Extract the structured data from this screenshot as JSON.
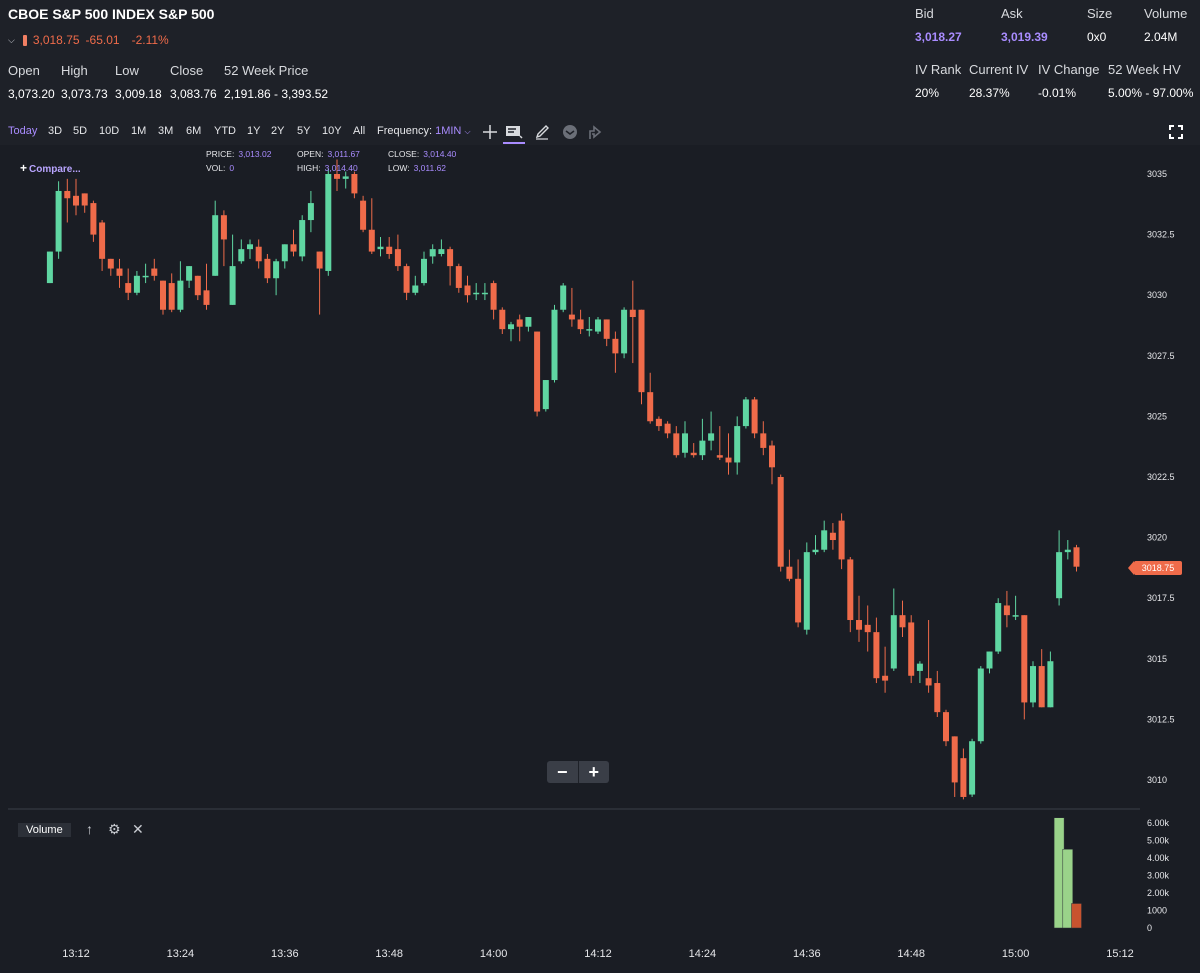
{
  "header": {
    "title": "CBOE S&P 500 INDEX S&P 500",
    "last": "3,018.75",
    "change": "-65.01",
    "change_pct": "-2.11%"
  },
  "ohlc": {
    "open_label": "Open",
    "open": "3,073.20",
    "high_label": "High",
    "high": "3,073.73",
    "low_label": "Low",
    "low": "3,009.18",
    "close_label": "Close",
    "close": "3,083.76",
    "week52_label": "52 Week Price",
    "week52": "2,191.86 - 3,393.52"
  },
  "quote": {
    "bid_label": "Bid",
    "bid": "3,018.27",
    "ask_label": "Ask",
    "ask": "3,019.39",
    "size_label": "Size",
    "size": "0x0",
    "volume_label": "Volume",
    "volume": "2.04M",
    "ivrank_label": "IV Rank",
    "ivrank": "20%",
    "curiv_label": "Current IV",
    "curiv": "28.37%",
    "ivchange_label": "IV Change",
    "ivchange": "-0.01%",
    "hv52_label": "52 Week HV",
    "hv52": "5.00% - 97.00%"
  },
  "toolbar": {
    "ranges": [
      "Today",
      "3D",
      "5D",
      "10D",
      "1M",
      "3M",
      "6M",
      "YTD",
      "1Y",
      "2Y",
      "5Y",
      "10Y",
      "All"
    ],
    "active_range": "Today",
    "frequency_label": "Frequency:",
    "frequency_value": "1MIN"
  },
  "legend": {
    "price_label": "PRICE:",
    "price": "3,013.02",
    "vol_label": "VOL:",
    "vol": "0",
    "open_label": "OPEN:",
    "open": "3,011.67",
    "high_label": "HIGH:",
    "high": "3,014.40",
    "close_label": "CLOSE:",
    "close": "3,014.40",
    "low_label": "LOW:",
    "low": "3,011.62"
  },
  "compare_label": "Compare...",
  "volume_panel": {
    "label": "Volume",
    "y_ticks": [
      "6.00k",
      "5.00k",
      "4.00k",
      "3.00k",
      "2.00k",
      "1000",
      "0"
    ]
  },
  "zoom": {
    "minus": "−",
    "plus": "+"
  },
  "price_badge": "3018.75",
  "colors": {
    "up": "#5fd6a2",
    "down": "#ef6b4a",
    "accent": "#a98cff",
    "background": "#1a1d24"
  },
  "chart_data": {
    "type": "candlestick",
    "y_ticks": [
      3035,
      3032.5,
      3030,
      3027.5,
      3025,
      3022.5,
      3020,
      3017.5,
      3015,
      3012.5,
      3010
    ],
    "y_tick_labels": [
      "3035",
      "3032.5",
      "3030",
      "3027.5",
      "3025",
      "3022.5",
      "3020",
      "3017.5",
      "3015",
      "3012.5",
      "3010"
    ],
    "ylim": [
      3009.2,
      3035.6
    ],
    "x_tick_labels": [
      "13:12",
      "13:24",
      "13:36",
      "13:48",
      "14:00",
      "14:12",
      "14:24",
      "14:36",
      "14:48",
      "15:00",
      "15:12"
    ],
    "candles": [
      {
        "time": "13:09",
        "open": 3030.5,
        "high": 3031.8,
        "close": 3031.8,
        "low": 3030.5
      },
      {
        "time": "13:10",
        "open": 3031.8,
        "high": 3034.7,
        "close": 3034.3,
        "low": 3031.5
      },
      {
        "time": "13:11",
        "open": 3034.3,
        "high": 3034.8,
        "close": 3034.0,
        "low": 3033.0
      },
      {
        "time": "13:12",
        "open": 3034.1,
        "high": 3034.8,
        "close": 3033.7,
        "low": 3033.3
      },
      {
        "time": "13:13",
        "open": 3034.2,
        "high": 3034.2,
        "close": 3033.7,
        "low": 3033.4
      },
      {
        "time": "13:14",
        "open": 3033.8,
        "high": 3033.9,
        "close": 3032.5,
        "low": 3032.2
      },
      {
        "time": "13:15",
        "open": 3033.0,
        "high": 3033.1,
        "close": 3031.5,
        "low": 3031.0
      },
      {
        "time": "13:16",
        "open": 3031.5,
        "high": 3031.5,
        "close": 3031.1,
        "low": 3030.8
      },
      {
        "time": "13:17",
        "open": 3031.1,
        "high": 3031.5,
        "close": 3030.8,
        "low": 3030.3
      },
      {
        "time": "13:18",
        "open": 3030.5,
        "high": 3031.1,
        "close": 3030.1,
        "low": 3029.8
      },
      {
        "time": "13:19",
        "open": 3030.1,
        "high": 3031.0,
        "close": 3030.8,
        "low": 3030.0
      },
      {
        "time": "13:20",
        "open": 3030.8,
        "high": 3031.3,
        "close": 3030.8,
        "low": 3030.5
      },
      {
        "time": "13:21",
        "open": 3031.1,
        "high": 3031.5,
        "close": 3030.8,
        "low": 3030.6
      },
      {
        "time": "13:22",
        "open": 3030.6,
        "high": 3030.6,
        "close": 3029.4,
        "low": 3029.2
      },
      {
        "time": "13:23",
        "open": 3030.5,
        "high": 3030.9,
        "close": 3029.4,
        "low": 3029.3
      },
      {
        "time": "13:24",
        "open": 3029.4,
        "high": 3031.4,
        "close": 3030.6,
        "low": 3029.3
      },
      {
        "time": "13:25",
        "open": 3030.6,
        "high": 3031.2,
        "close": 3031.2,
        "low": 3030.3
      },
      {
        "time": "13:26",
        "open": 3030.8,
        "high": 3030.8,
        "close": 3030.0,
        "low": 3029.8
      },
      {
        "time": "13:27",
        "open": 3030.2,
        "high": 3031.3,
        "close": 3029.6,
        "low": 3029.4
      },
      {
        "time": "13:28",
        "open": 3030.8,
        "high": 3033.9,
        "close": 3033.3,
        "low": 3030.8
      },
      {
        "time": "13:29",
        "open": 3033.3,
        "high": 3033.5,
        "close": 3032.3,
        "low": 3031.2
      },
      {
        "time": "13:30",
        "open": 3029.6,
        "high": 3032.5,
        "close": 3031.2,
        "low": 3029.6
      },
      {
        "time": "13:31",
        "open": 3031.4,
        "high": 3032.3,
        "close": 3031.9,
        "low": 3031.3
      },
      {
        "time": "13:32",
        "open": 3031.9,
        "high": 3032.3,
        "close": 3032.1,
        "low": 3031.5
      },
      {
        "time": "13:33",
        "open": 3032.0,
        "high": 3032.3,
        "close": 3031.4,
        "low": 3031.1
      },
      {
        "time": "13:34",
        "open": 3031.5,
        "high": 3031.7,
        "close": 3030.7,
        "low": 3030.5
      },
      {
        "time": "13:35",
        "open": 3030.7,
        "high": 3031.5,
        "close": 3031.4,
        "low": 3030.0
      },
      {
        "time": "13:36",
        "open": 3031.4,
        "high": 3032.1,
        "close": 3032.1,
        "low": 3031.1
      },
      {
        "time": "13:37",
        "open": 3032.1,
        "high": 3032.7,
        "close": 3031.8,
        "low": 3031.6
      },
      {
        "time": "13:38",
        "open": 3031.6,
        "high": 3033.3,
        "close": 3033.1,
        "low": 3031.4
      },
      {
        "time": "13:39",
        "open": 3033.1,
        "high": 3034.3,
        "close": 3033.8,
        "low": 3032.6
      },
      {
        "time": "13:40",
        "open": 3031.8,
        "high": 3031.8,
        "close": 3031.1,
        "low": 3029.2
      },
      {
        "time": "13:41",
        "open": 3031.0,
        "high": 3035.2,
        "close": 3035.0,
        "low": 3030.8
      },
      {
        "time": "13:42",
        "open": 3035.0,
        "high": 3035.6,
        "close": 3034.8,
        "low": 3034.3
      },
      {
        "time": "13:43",
        "open": 3034.8,
        "high": 3035.1,
        "close": 3034.9,
        "low": 3034.4
      },
      {
        "time": "13:44",
        "open": 3035.0,
        "high": 3035.1,
        "close": 3034.2,
        "low": 3034.0
      },
      {
        "time": "13:45",
        "open": 3033.9,
        "high": 3034.1,
        "close": 3032.7,
        "low": 3032.6
      },
      {
        "time": "13:46",
        "open": 3032.7,
        "high": 3034.0,
        "close": 3031.8,
        "low": 3031.7
      },
      {
        "time": "13:47",
        "open": 3031.9,
        "high": 3032.4,
        "close": 3032.0,
        "low": 3031.6
      },
      {
        "time": "13:48",
        "open": 3032.0,
        "high": 3032.4,
        "close": 3031.7,
        "low": 3031.5
      },
      {
        "time": "13:49",
        "open": 3031.9,
        "high": 3032.5,
        "close": 3031.2,
        "low": 3031.0
      },
      {
        "time": "13:50",
        "open": 3031.2,
        "high": 3031.3,
        "close": 3030.1,
        "low": 3029.8
      },
      {
        "time": "13:51",
        "open": 3030.1,
        "high": 3030.8,
        "close": 3030.4,
        "low": 3030.0
      },
      {
        "time": "13:52",
        "open": 3030.5,
        "high": 3031.8,
        "close": 3031.5,
        "low": 3030.4
      },
      {
        "time": "13:53",
        "open": 3031.6,
        "high": 3032.1,
        "close": 3031.9,
        "low": 3031.3
      },
      {
        "time": "13:54",
        "open": 3031.7,
        "high": 3032.3,
        "close": 3031.9,
        "low": 3031.6
      },
      {
        "time": "13:55",
        "open": 3031.9,
        "high": 3032.0,
        "close": 3031.2,
        "low": 3030.4
      },
      {
        "time": "13:56",
        "open": 3031.2,
        "high": 3031.3,
        "close": 3030.3,
        "low": 3030.1
      },
      {
        "time": "13:57",
        "open": 3030.4,
        "high": 3030.8,
        "close": 3030.0,
        "low": 3029.7
      },
      {
        "time": "13:58",
        "open": 3030.1,
        "high": 3030.5,
        "close": 3030.1,
        "low": 3029.8
      },
      {
        "time": "13:59",
        "open": 3030.1,
        "high": 3030.5,
        "close": 3030.1,
        "low": 3029.8
      },
      {
        "time": "14:00",
        "open": 3030.5,
        "high": 3030.6,
        "close": 3029.4,
        "low": 3029.0
      },
      {
        "time": "14:01",
        "open": 3029.4,
        "high": 3029.5,
        "close": 3028.6,
        "low": 3028.4
      },
      {
        "time": "14:02",
        "open": 3028.6,
        "high": 3028.9,
        "close": 3028.8,
        "low": 3028.1
      },
      {
        "time": "14:03",
        "open": 3029.0,
        "high": 3029.2,
        "close": 3028.7,
        "low": 3028.1
      },
      {
        "time": "14:04",
        "open": 3028.7,
        "high": 3029.1,
        "close": 3029.1,
        "low": 3028.5
      },
      {
        "time": "14:05",
        "open": 3028.5,
        "high": 3028.5,
        "close": 3025.2,
        "low": 3025.0
      },
      {
        "time": "14:06",
        "open": 3025.3,
        "high": 3026.5,
        "close": 3026.5,
        "low": 3025.2
      },
      {
        "time": "14:07",
        "open": 3026.5,
        "high": 3029.6,
        "close": 3029.4,
        "low": 3026.4
      },
      {
        "time": "14:08",
        "open": 3029.4,
        "high": 3030.5,
        "close": 3030.4,
        "low": 3029.3
      },
      {
        "time": "14:09",
        "open": 3029.2,
        "high": 3030.3,
        "close": 3029.0,
        "low": 3028.7
      },
      {
        "time": "14:10",
        "open": 3029.0,
        "high": 3029.4,
        "close": 3028.6,
        "low": 3028.4
      },
      {
        "time": "14:11",
        "open": 3028.6,
        "high": 3029.1,
        "close": 3028.6,
        "low": 3028.3
      },
      {
        "time": "14:12",
        "open": 3028.5,
        "high": 3029.1,
        "close": 3029.0,
        "low": 3028.4
      },
      {
        "time": "14:13",
        "open": 3029.0,
        "high": 3029.0,
        "close": 3028.2,
        "low": 3027.9
      },
      {
        "time": "14:14",
        "open": 3028.2,
        "high": 3028.5,
        "close": 3027.6,
        "low": 3026.8
      },
      {
        "time": "14:15",
        "open": 3027.6,
        "high": 3029.5,
        "close": 3029.4,
        "low": 3027.4
      },
      {
        "time": "14:16",
        "open": 3029.4,
        "high": 3030.6,
        "close": 3029.1,
        "low": 3027.2
      },
      {
        "time": "14:17",
        "open": 3029.4,
        "high": 3029.4,
        "close": 3026.0,
        "low": 3025.5
      },
      {
        "time": "14:18",
        "open": 3026.0,
        "high": 3026.8,
        "close": 3024.8,
        "low": 3024.7
      },
      {
        "time": "14:19",
        "open": 3024.9,
        "high": 3025.0,
        "close": 3024.6,
        "low": 3024.4
      },
      {
        "time": "14:20",
        "open": 3024.7,
        "high": 3024.8,
        "close": 3024.3,
        "low": 3024.1
      },
      {
        "time": "14:21",
        "open": 3024.3,
        "high": 3024.6,
        "close": 3023.4,
        "low": 3023.3
      },
      {
        "time": "14:22",
        "open": 3023.5,
        "high": 3024.8,
        "close": 3024.3,
        "low": 3023.3
      },
      {
        "time": "14:23",
        "open": 3023.5,
        "high": 3023.9,
        "close": 3023.4,
        "low": 3023.3
      },
      {
        "time": "14:24",
        "open": 3023.4,
        "high": 3024.9,
        "close": 3024.0,
        "low": 3023.2
      },
      {
        "time": "14:25",
        "open": 3024.0,
        "high": 3025.2,
        "close": 3024.3,
        "low": 3023.6
      },
      {
        "time": "14:26",
        "open": 3023.4,
        "high": 3024.6,
        "close": 3023.3,
        "low": 3023.2
      },
      {
        "time": "14:27",
        "open": 3023.3,
        "high": 3024.3,
        "close": 3023.1,
        "low": 3022.6
      },
      {
        "time": "14:28",
        "open": 3023.1,
        "high": 3025.0,
        "close": 3024.6,
        "low": 3022.6
      },
      {
        "time": "14:29",
        "open": 3024.6,
        "high": 3025.8,
        "close": 3025.7,
        "low": 3024.5
      },
      {
        "time": "14:30",
        "open": 3025.7,
        "high": 3025.8,
        "close": 3024.3,
        "low": 3024.1
      },
      {
        "time": "14:31",
        "open": 3024.3,
        "high": 3024.8,
        "close": 3023.7,
        "low": 3023.4
      },
      {
        "time": "14:32",
        "open": 3023.8,
        "high": 3024.0,
        "close": 3022.9,
        "low": 3022.2
      },
      {
        "time": "14:33",
        "open": 3022.5,
        "high": 3022.6,
        "close": 3018.8,
        "low": 3018.6
      },
      {
        "time": "14:34",
        "open": 3018.8,
        "high": 3019.5,
        "close": 3018.3,
        "low": 3018.2
      },
      {
        "time": "14:35",
        "open": 3018.3,
        "high": 3019.1,
        "close": 3016.5,
        "low": 3016.3
      },
      {
        "time": "14:36",
        "open": 3016.2,
        "high": 3019.8,
        "close": 3019.4,
        "low": 3016.0
      },
      {
        "time": "14:37",
        "open": 3019.4,
        "high": 3020.1,
        "close": 3019.5,
        "low": 3019.3
      },
      {
        "time": "14:38",
        "open": 3019.5,
        "high": 3020.7,
        "close": 3020.3,
        "low": 3019.4
      },
      {
        "time": "14:39",
        "open": 3020.2,
        "high": 3020.6,
        "close": 3019.9,
        "low": 3019.5
      },
      {
        "time": "14:40",
        "open": 3020.7,
        "high": 3021.0,
        "close": 3019.1,
        "low": 3018.7
      },
      {
        "time": "14:41",
        "open": 3019.1,
        "high": 3019.2,
        "close": 3016.6,
        "low": 3016.1
      },
      {
        "time": "14:42",
        "open": 3016.6,
        "high": 3017.6,
        "close": 3016.2,
        "low": 3015.7
      },
      {
        "time": "14:43",
        "open": 3016.4,
        "high": 3017.2,
        "close": 3016.1,
        "low": 3015.3
      },
      {
        "time": "14:44",
        "open": 3016.1,
        "high": 3016.7,
        "close": 3014.2,
        "low": 3014.0
      },
      {
        "time": "14:45",
        "open": 3014.3,
        "high": 3015.5,
        "close": 3014.1,
        "low": 3013.6
      },
      {
        "time": "14:46",
        "open": 3014.6,
        "high": 3017.9,
        "close": 3016.8,
        "low": 3014.5
      },
      {
        "time": "14:47",
        "open": 3016.8,
        "high": 3017.4,
        "close": 3016.3,
        "low": 3015.9
      },
      {
        "time": "14:48",
        "open": 3016.5,
        "high": 3016.8,
        "close": 3014.3,
        "low": 3014.0
      },
      {
        "time": "14:49",
        "open": 3014.5,
        "high": 3014.9,
        "close": 3014.8,
        "low": 3014.0
      },
      {
        "time": "14:50",
        "open": 3014.2,
        "high": 3016.6,
        "close": 3013.9,
        "low": 3013.6
      },
      {
        "time": "14:51",
        "open": 3014.0,
        "high": 3014.5,
        "close": 3012.8,
        "low": 3012.6
      },
      {
        "time": "14:52",
        "open": 3012.8,
        "high": 3012.9,
        "close": 3011.6,
        "low": 3011.4
      },
      {
        "time": "14:53",
        "open": 3011.8,
        "high": 3011.8,
        "close": 3009.9,
        "low": 3009.3
      },
      {
        "time": "14:54",
        "open": 3010.9,
        "high": 3011.3,
        "close": 3009.3,
        "low": 3009.2
      },
      {
        "time": "14:55",
        "open": 3009.4,
        "high": 3011.7,
        "close": 3011.6,
        "low": 3009.3
      },
      {
        "time": "14:56",
        "open": 3011.6,
        "high": 3014.7,
        "close": 3014.6,
        "low": 3011.5
      },
      {
        "time": "14:57",
        "open": 3014.6,
        "high": 3015.3,
        "close": 3015.3,
        "low": 3014.4
      },
      {
        "time": "14:58",
        "open": 3015.3,
        "high": 3017.5,
        "close": 3017.3,
        "low": 3015.2
      },
      {
        "time": "14:59",
        "open": 3017.2,
        "high": 3017.8,
        "close": 3016.8,
        "low": 3016.3
      },
      {
        "time": "15:00",
        "open": 3016.8,
        "high": 3017.6,
        "close": 3016.8,
        "low": 3016.6
      },
      {
        "time": "15:01",
        "open": 3016.8,
        "high": 3016.8,
        "close": 3013.2,
        "low": 3012.5
      },
      {
        "time": "15:02",
        "open": 3013.2,
        "high": 3014.9,
        "close": 3014.7,
        "low": 3013.0
      },
      {
        "time": "15:03",
        "open": 3014.7,
        "high": 3015.4,
        "close": 3013.0,
        "low": 3013.0
      },
      {
        "time": "15:04",
        "open": 3013.0,
        "high": 3015.3,
        "close": 3014.9,
        "low": 3013.0
      },
      {
        "time": "15:05",
        "open": 3017.5,
        "high": 3020.3,
        "close": 3019.4,
        "low": 3017.2
      },
      {
        "time": "15:06",
        "open": 3019.4,
        "high": 3019.9,
        "close": 3019.5,
        "low": 3019.1
      },
      {
        "time": "15:07",
        "open": 3019.6,
        "high": 3019.7,
        "close": 3018.8,
        "low": 3018.6
      }
    ],
    "volume": [
      {
        "time": "15:05",
        "value": 6300,
        "dir": "up"
      },
      {
        "time": "15:06",
        "value": 4500,
        "dir": "up"
      },
      {
        "time": "15:07",
        "value": 1400,
        "dir": "down"
      }
    ],
    "volume_ylim": [
      0,
      6600
    ]
  }
}
